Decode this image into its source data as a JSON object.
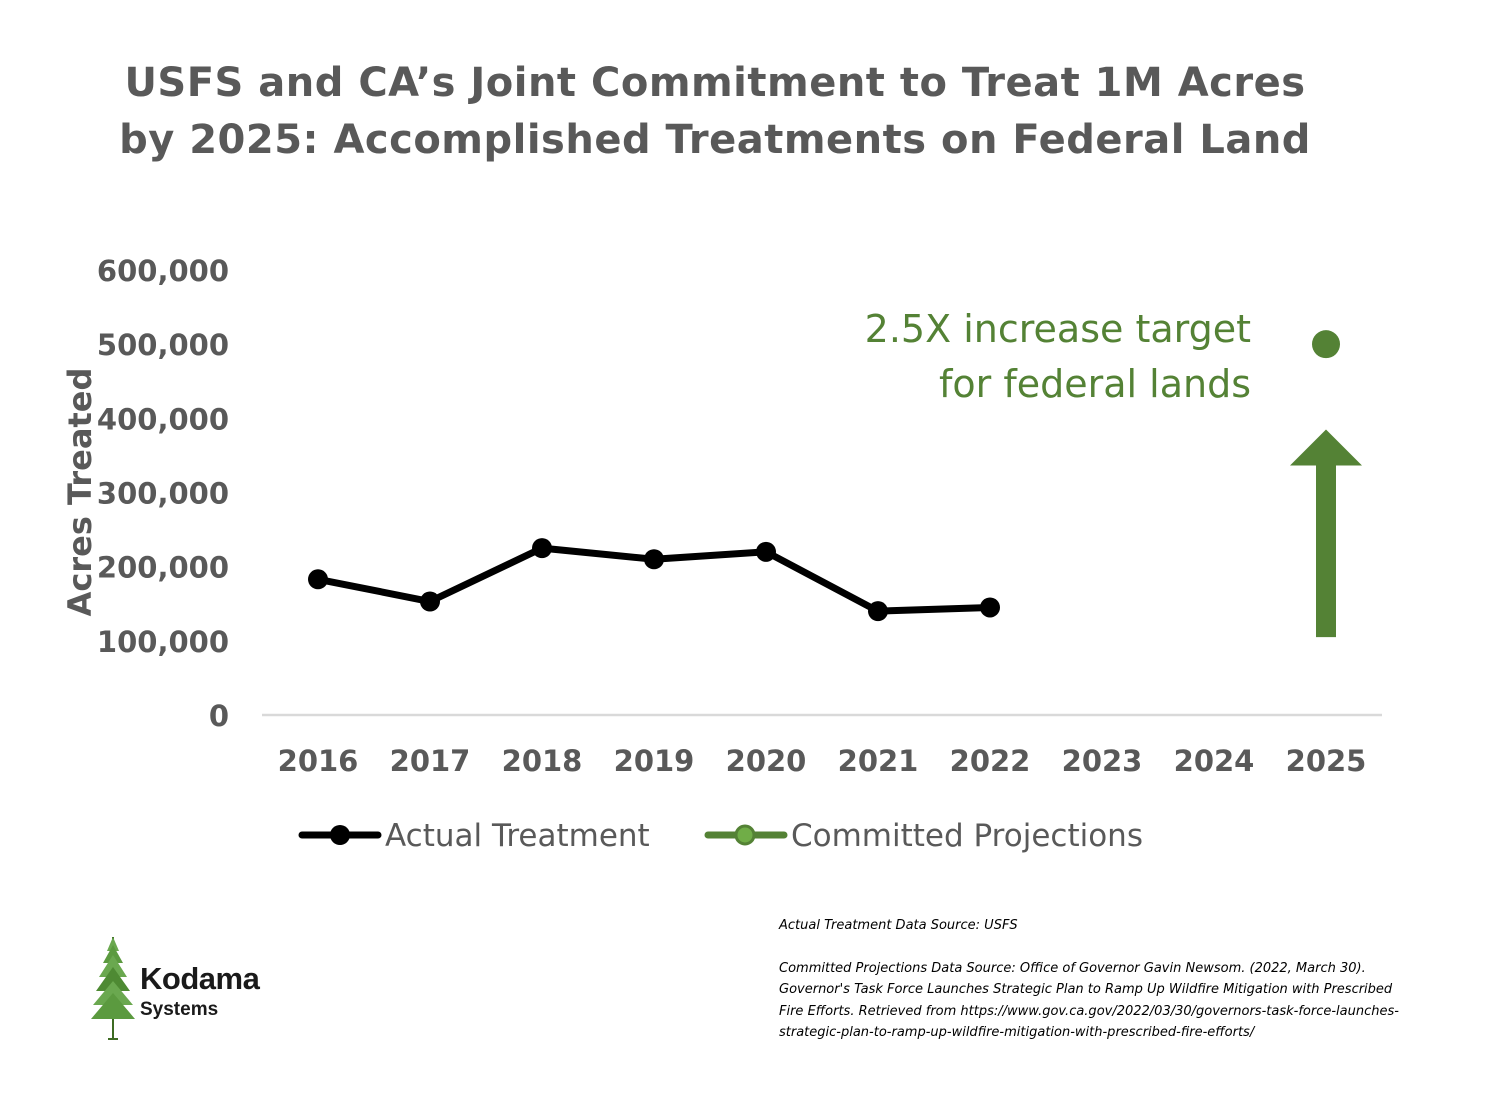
{
  "title_lines": [
    "USFS and CA’s Joint Commitment to Treat 1M Acres",
    "by 2025: Accomplished Treatments on Federal Land"
  ],
  "colors": {
    "actual": "#000000",
    "projection": "#548235",
    "projection_marker": "#70ad47",
    "text": "#595959",
    "axis": "#d9d9d9"
  },
  "chart_data": {
    "type": "line",
    "title": "USFS and CA’s Joint Commitment to Treat 1M Acres by 2025: Accomplished Treatments on Federal Land",
    "xlabel": "",
    "ylabel": "Acres Treated",
    "categories": [
      "2016",
      "2017",
      "2018",
      "2019",
      "2020",
      "2021",
      "2022",
      "2023",
      "2024",
      "2025"
    ],
    "ylim": [
      0,
      600000
    ],
    "yticks": [
      0,
      100000,
      200000,
      300000,
      400000,
      500000,
      600000
    ],
    "ytick_labels": [
      "0",
      "100,000",
      "200,000",
      "300,000",
      "400,000",
      "500,000",
      "600,000"
    ],
    "grid": false,
    "legend_position": "bottom",
    "series": [
      {
        "name": "Actual Treatment",
        "values": [
          183000,
          153000,
          225000,
          210000,
          220000,
          140000,
          145000,
          null,
          null,
          null
        ]
      },
      {
        "name": "Committed Projections",
        "values": [
          null,
          null,
          null,
          null,
          null,
          null,
          null,
          null,
          null,
          500000
        ]
      }
    ],
    "annotations": {
      "text_lines": [
        "2.5X increase target",
        "for federal lands"
      ],
      "arrow": {
        "category": "2025",
        "from": 105000,
        "to": 385000
      }
    }
  },
  "sources": {
    "actual": "Actual Treatment Data Source: USFS",
    "projections": "Committed Projections Data Source: Office of Governor Gavin Newsom. (2022, March 30). Governor's Task Force Launches Strategic Plan to Ramp Up Wildfire Mitigation with Prescribed Fire Efforts. Retrieved from https://www.gov.ca.gov/2022/03/30/governors-task-force-launches-strategic-plan-to-ramp-up-wildfire-mitigation-with-prescribed-fire-efforts/"
  },
  "logo": {
    "name": "Kodama",
    "sub": "Systems"
  }
}
